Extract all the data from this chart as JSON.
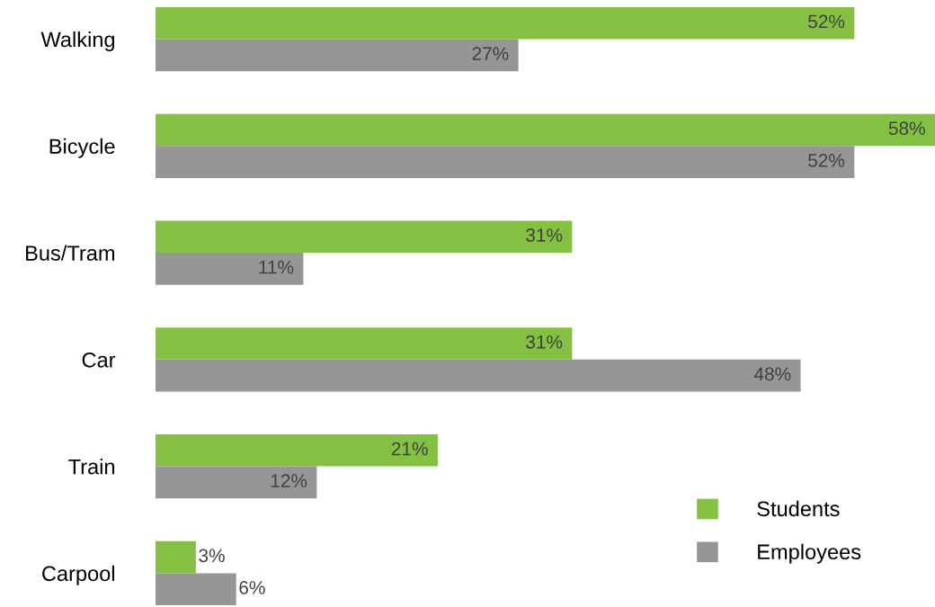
{
  "chart_data": {
    "type": "bar",
    "orientation": "horizontal",
    "categories": [
      "Walking",
      "Bicycle",
      "Bus/Tram",
      "Car",
      "Train",
      "Carpool"
    ],
    "series": [
      {
        "name": "Students",
        "color": "#84c142",
        "values": [
          52,
          58,
          31,
          31,
          21,
          3
        ],
        "value_labels": [
          "52%",
          "58%",
          "31%",
          "31%",
          "21%",
          "3%"
        ]
      },
      {
        "name": "Employees",
        "color": "#969696",
        "values": [
          27,
          52,
          11,
          48,
          12,
          6
        ],
        "value_labels": [
          "27%",
          "52%",
          "11%",
          "48%",
          "12%",
          "6%"
        ]
      }
    ],
    "legend": "bottom right",
    "grid": false
  }
}
